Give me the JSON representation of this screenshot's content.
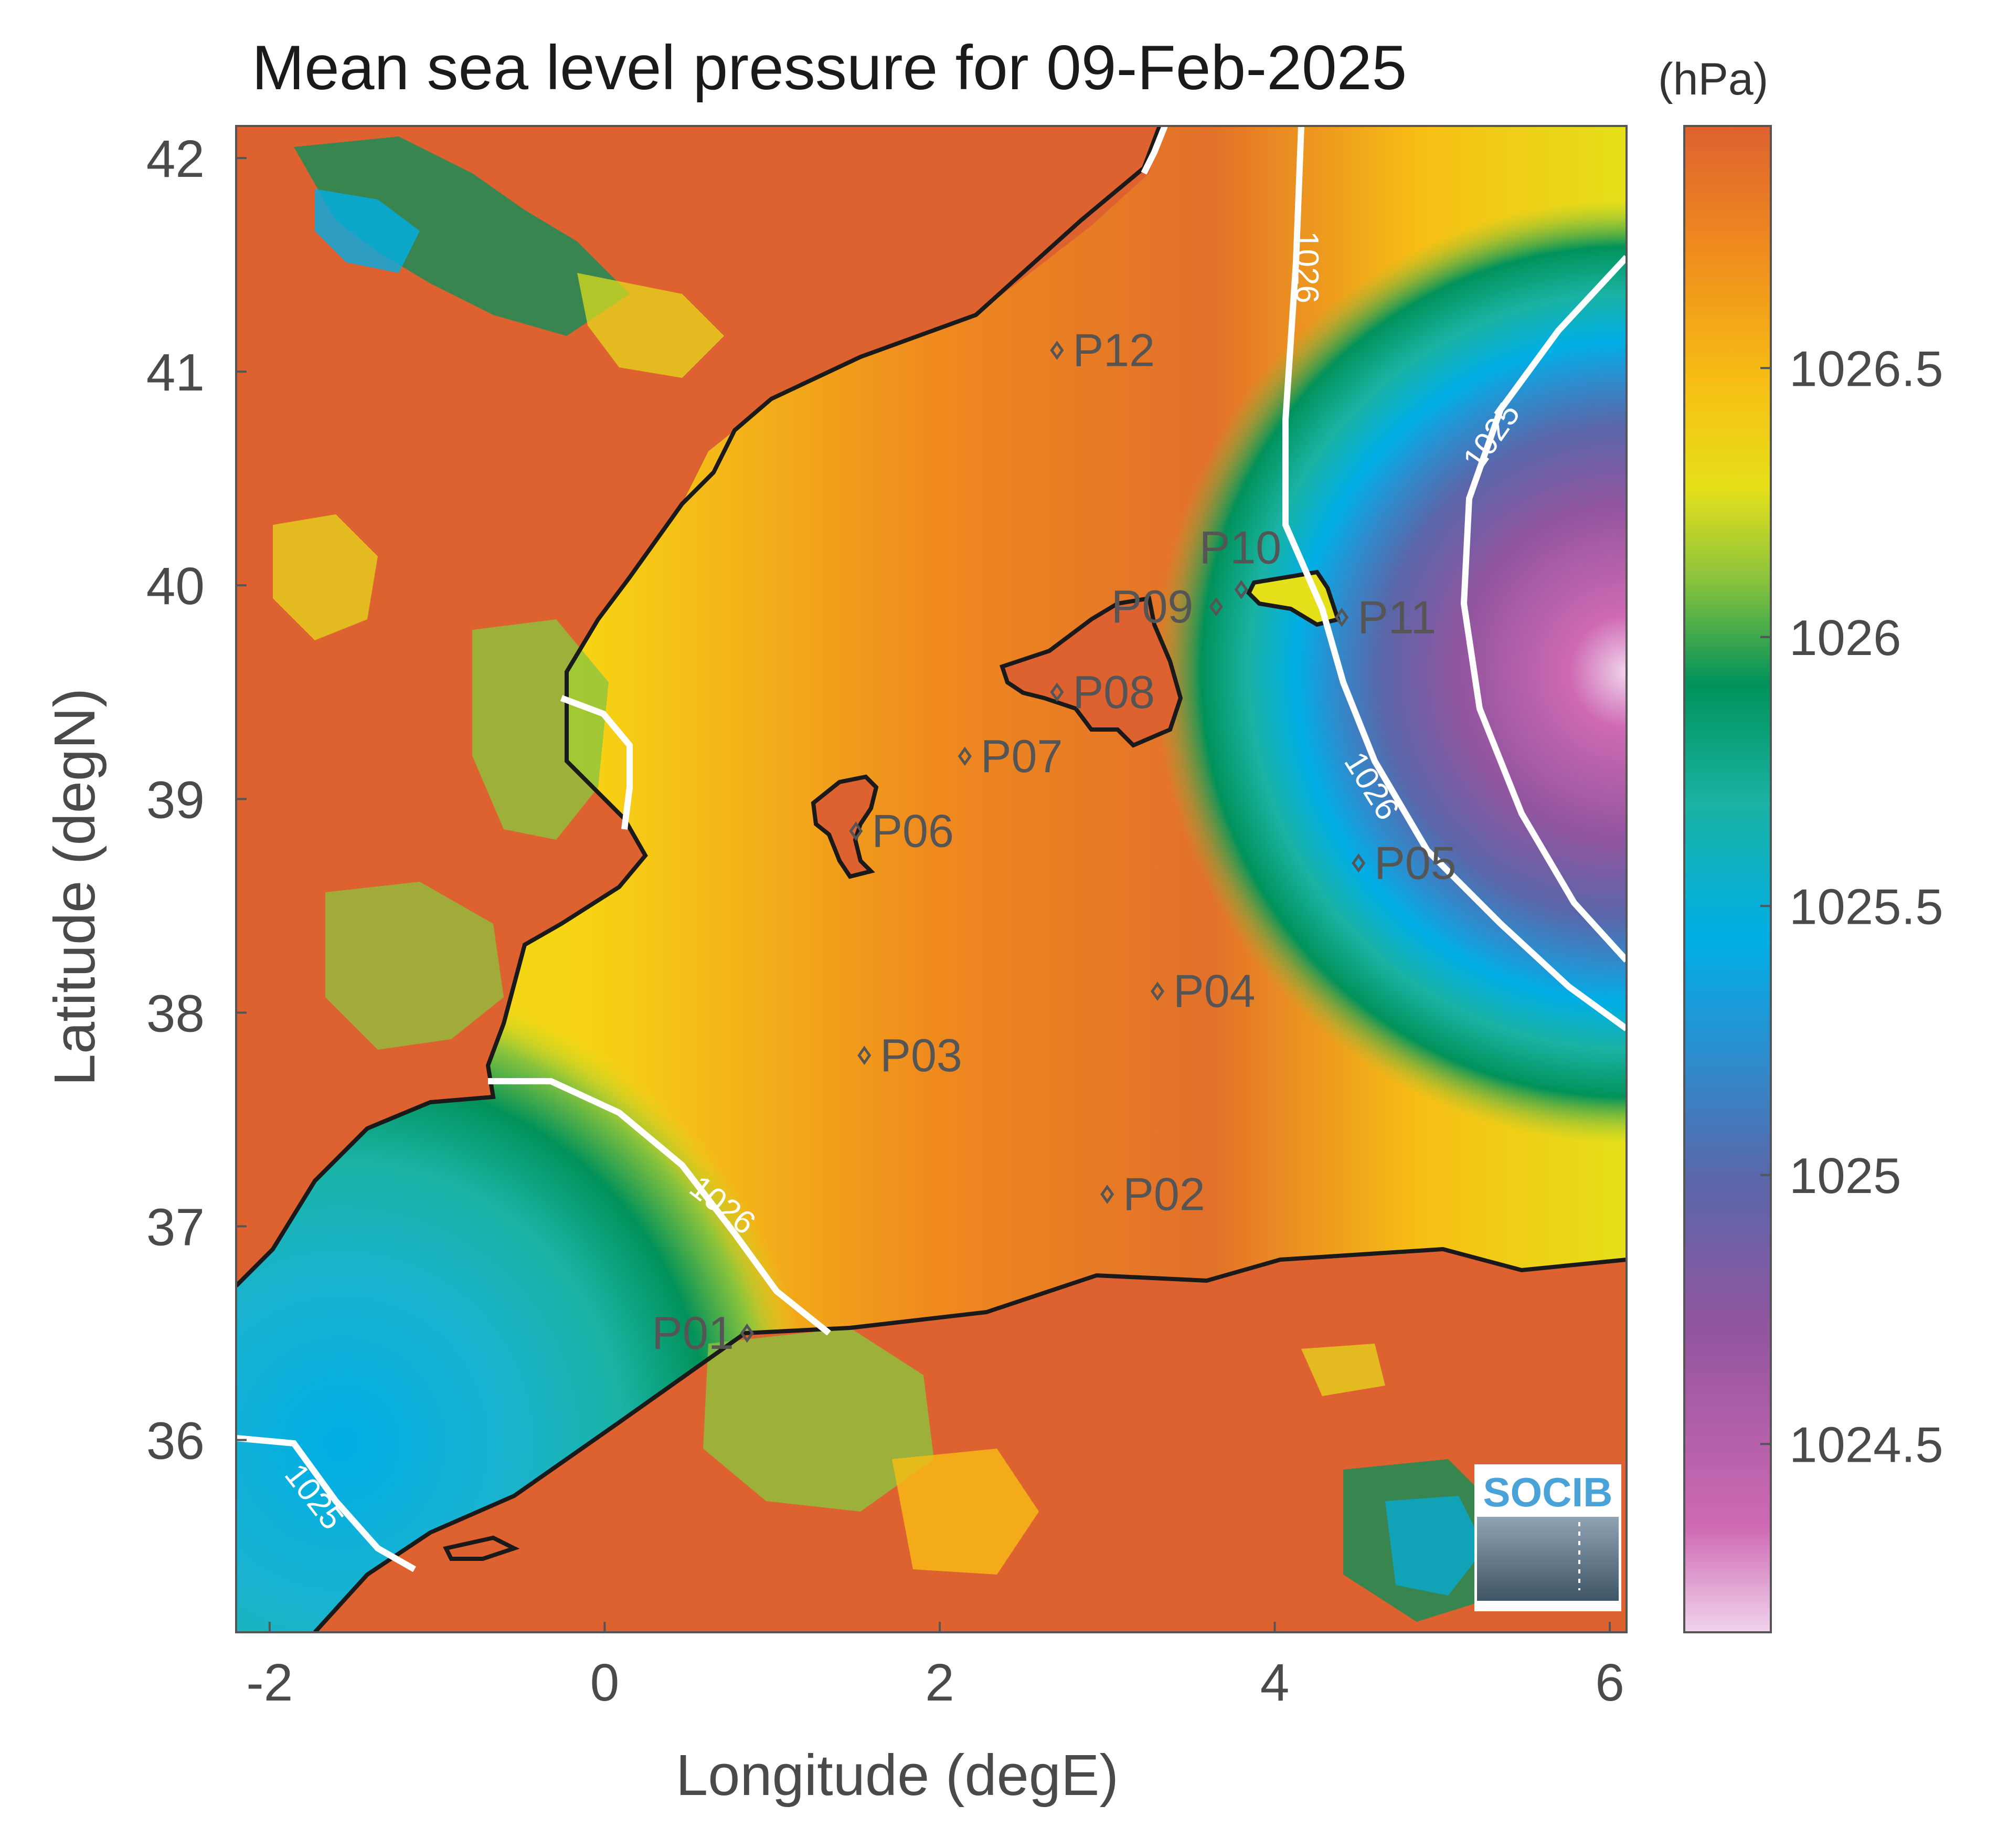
{
  "map": {
    "title": "Mean sea level pressure for 09-Feb-2025",
    "unit": "(hPa)",
    "xlabel": "Longitude (degE)",
    "ylabel": "Latitude (degN)",
    "xticks": [
      "-2",
      "0",
      "2",
      "4",
      "6"
    ],
    "yticks": [
      "42",
      "41",
      "40",
      "39",
      "38",
      "37",
      "36"
    ],
    "xlim": [
      -2.2,
      6.1
    ],
    "ylim": [
      35.1,
      42.15
    ],
    "colorbar": {
      "ticks": [
        "1026.5",
        "1026",
        "1025.5",
        "1025",
        "1024.5"
      ],
      "tick_values": [
        1026.5,
        1026,
        1025.5,
        1025,
        1024.5
      ],
      "range": [
        1024.15,
        1026.95
      ],
      "colors": [
        "#f0d4ec",
        "#cf69b3",
        "#93559f",
        "#5a66a9",
        "#2e8ccd",
        "#00aee6",
        "#1ab3a4",
        "#01925a",
        "#8cc43c",
        "#e6e01a",
        "#f7be14",
        "#ef8a1e",
        "#de6230"
      ]
    },
    "contours": [
      {
        "label": "1026"
      },
      {
        "label": "1026"
      },
      {
        "label": "1026"
      },
      {
        "label": "1025"
      },
      {
        "label": "1025"
      }
    ],
    "stations": [
      {
        "name": "P01",
        "lon": 0.85,
        "lat": 36.5
      },
      {
        "name": "P02",
        "lon": 3.0,
        "lat": 37.15
      },
      {
        "name": "P03",
        "lon": 1.55,
        "lat": 37.8
      },
      {
        "name": "P04",
        "lon": 3.3,
        "lat": 38.1
      },
      {
        "name": "P05",
        "lon": 4.5,
        "lat": 38.7
      },
      {
        "name": "P06",
        "lon": 1.5,
        "lat": 38.85
      },
      {
        "name": "P07",
        "lon": 2.15,
        "lat": 39.2
      },
      {
        "name": "P08",
        "lon": 2.7,
        "lat": 39.5
      },
      {
        "name": "P09",
        "lon": 3.65,
        "lat": 39.9
      },
      {
        "name": "P10",
        "lon": 3.8,
        "lat": 39.98
      },
      {
        "name": "P11",
        "lon": 4.4,
        "lat": 39.85
      },
      {
        "name": "P12",
        "lon": 2.7,
        "lat": 41.1
      }
    ],
    "logo": "SOCIB"
  }
}
